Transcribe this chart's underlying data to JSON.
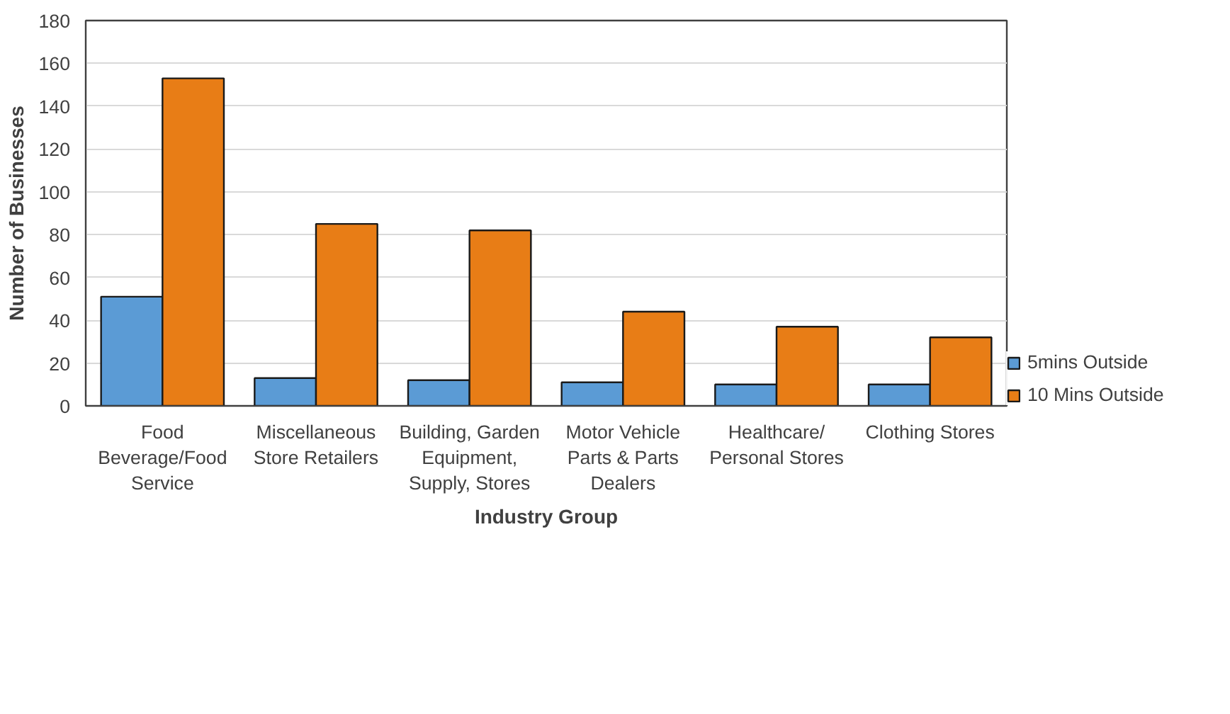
{
  "chart_data": {
    "type": "bar",
    "categories": [
      "Food Beverage/Food Service",
      "Miscellaneous Store Retailers",
      "Building, Garden Equipment, Supply, Stores",
      "Motor Vehicle Parts & Parts Dealers",
      "Healthcare/ Personal Stores",
      "Clothing Stores"
    ],
    "series": [
      {
        "name": "5mins Outside",
        "color": "#5b9bd5",
        "values": [
          51,
          13,
          12,
          11,
          10,
          10
        ]
      },
      {
        "name": "10 Mins Outside",
        "color": "#e87d16",
        "values": [
          153,
          85,
          82,
          44,
          37,
          32
        ]
      }
    ],
    "xlabel": "Industry Group",
    "ylabel": "Number of Businesses",
    "ylim": [
      0,
      180
    ],
    "yticks": [
      0,
      20,
      40,
      60,
      80,
      100,
      120,
      140,
      160,
      180
    ],
    "grid": "y",
    "legend": "bottom right"
  }
}
